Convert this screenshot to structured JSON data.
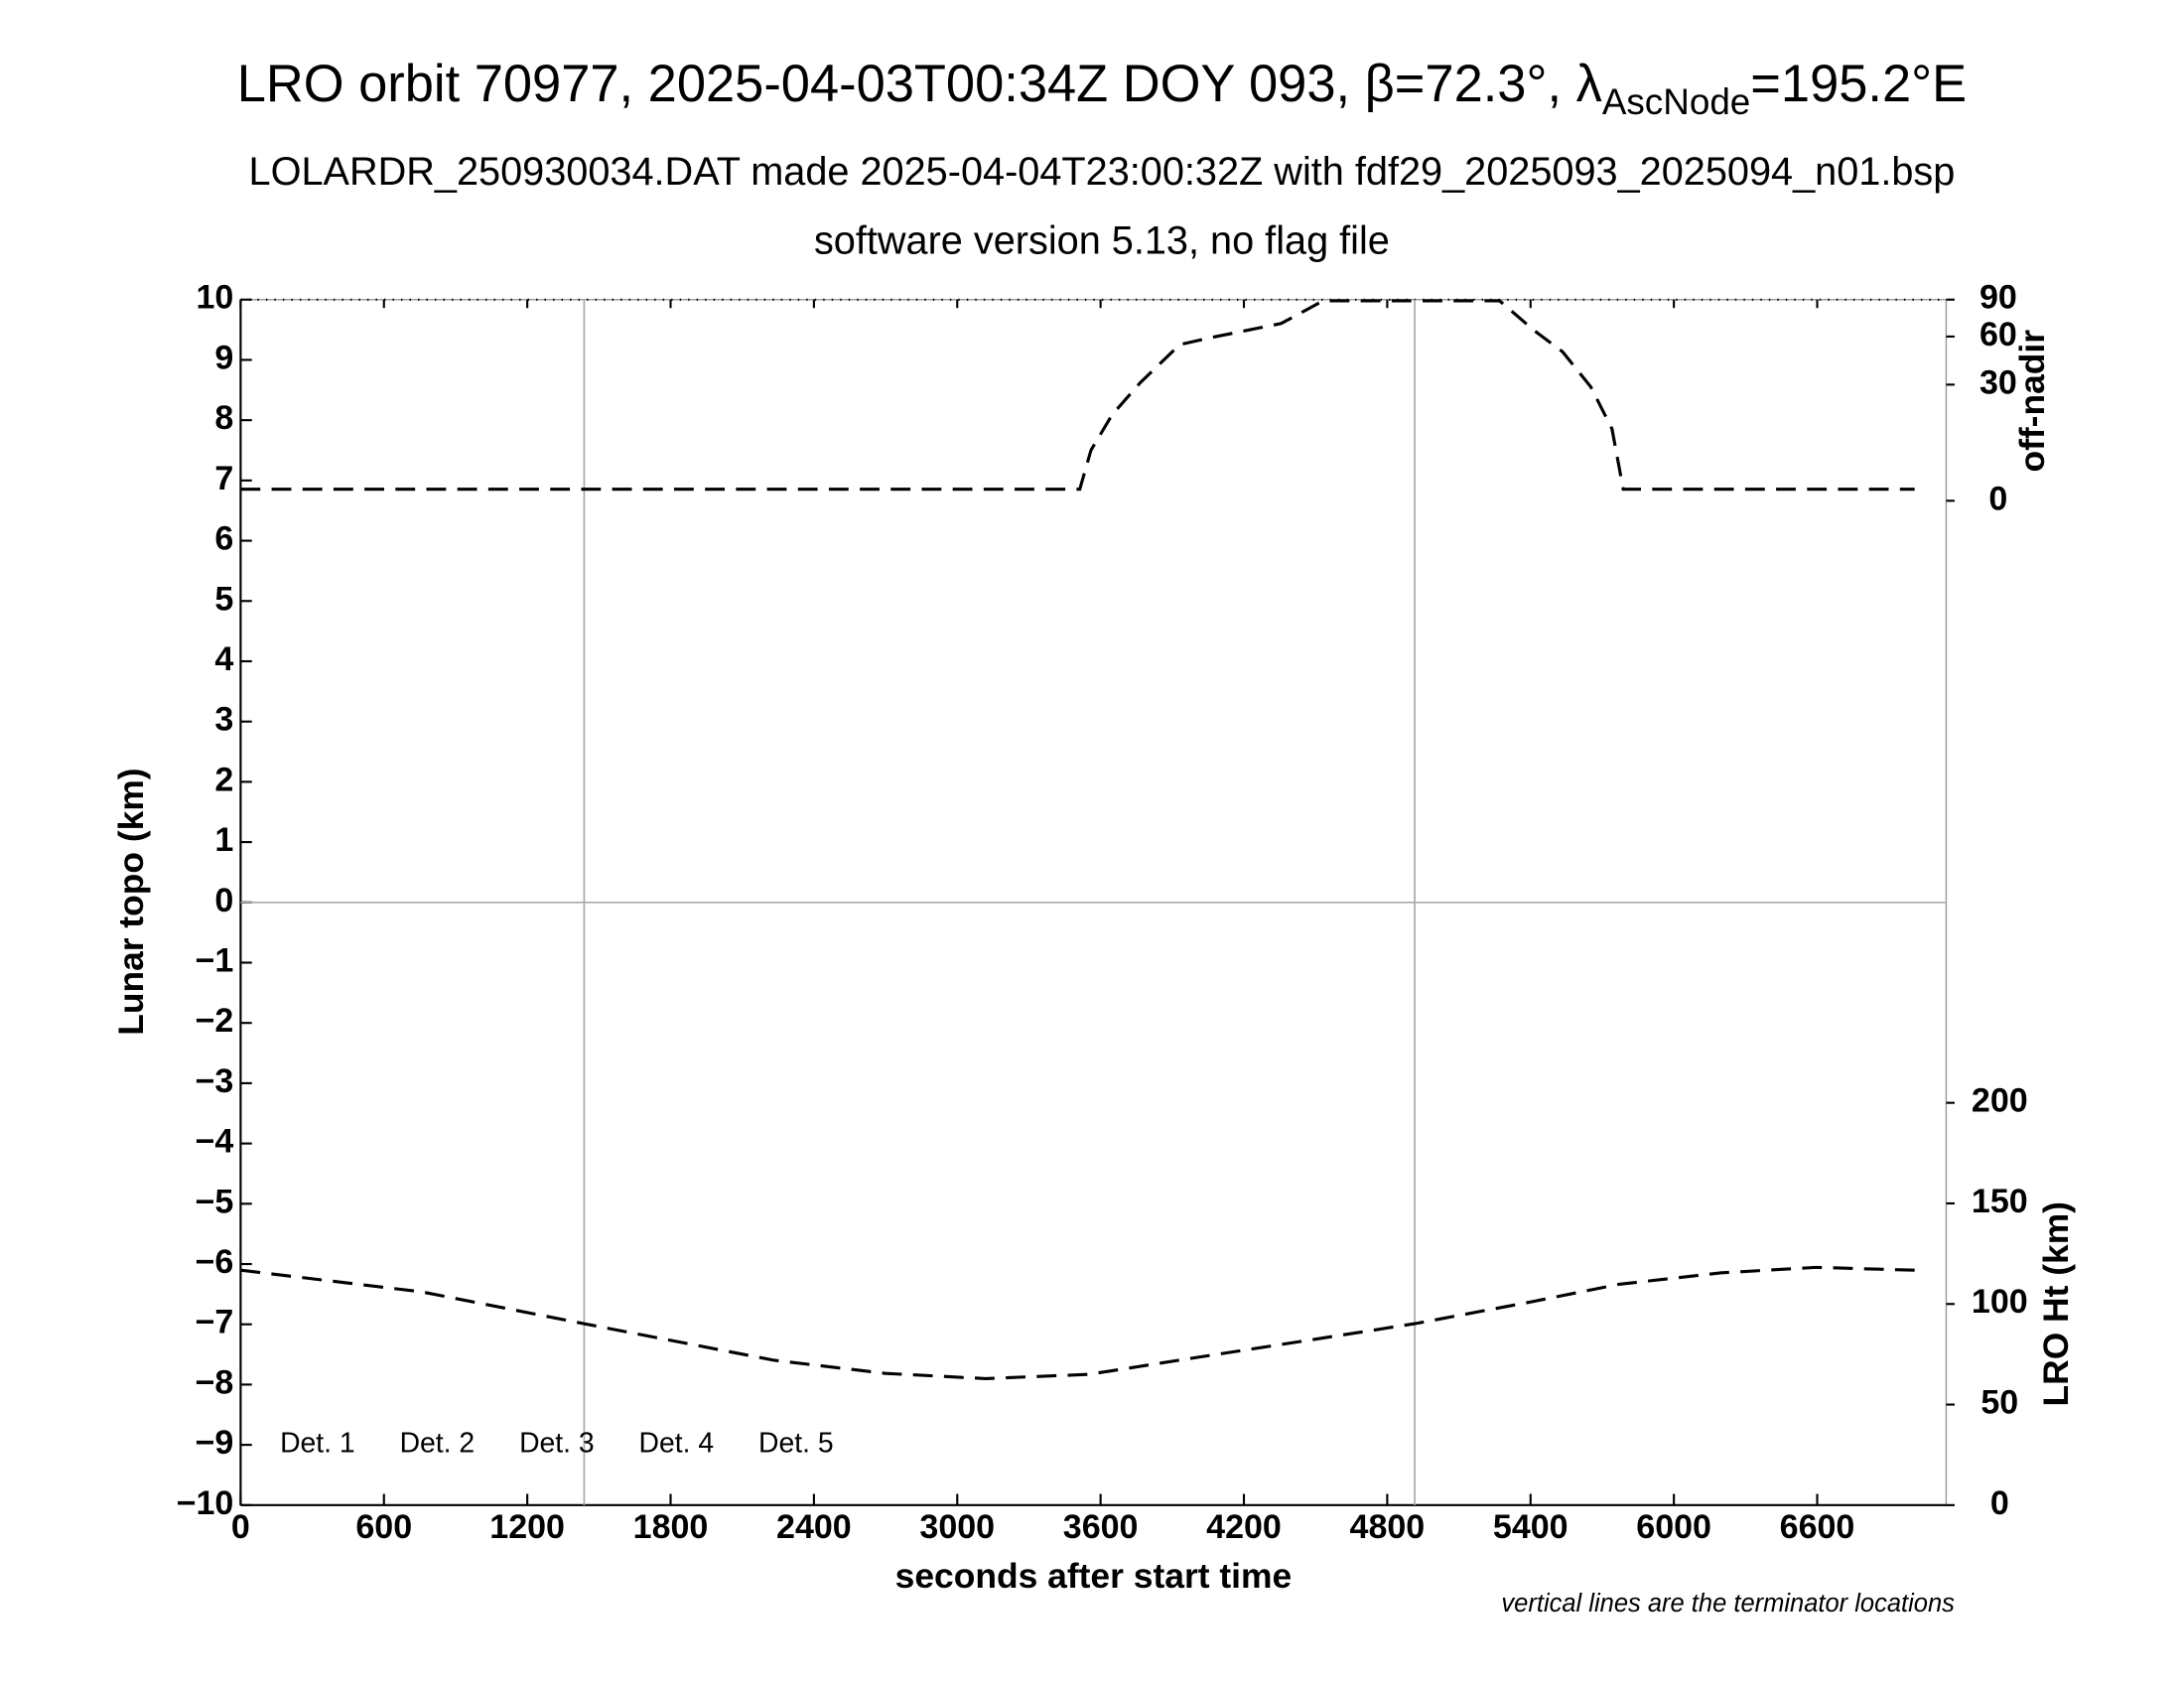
{
  "chart_data": {
    "type": "line",
    "title": [
      "LRO orbit 70977, 2025-04-03T00:34Z DOY 093, β=72.3°, λ",
      "AscNode",
      "=195.2°E"
    ],
    "subtitle": [
      "LOLARDR_250930034.DAT made 2025-04-04T23:00:32Z with fdf29_2025093_2025094_n01.bsp",
      "software version 5.13, no flag file"
    ],
    "xlabel": "seconds after start time",
    "ylabel": "Lunar topo (km)",
    "y2label": "off-nadir",
    "y3label": "LRO Ht (km)",
    "note": "vertical lines are the terminator locations",
    "xlim": [
      0,
      7140
    ],
    "xticks": [
      0,
      600,
      1200,
      1800,
      2400,
      3000,
      3600,
      4200,
      4800,
      5400,
      6000,
      6600
    ],
    "ylim": [
      -10,
      10
    ],
    "yticks": [
      {
        "value": -10,
        "label": "−10"
      },
      {
        "value": -9,
        "label": "−9"
      },
      {
        "value": -8,
        "label": "−8"
      },
      {
        "value": -7,
        "label": "−7"
      },
      {
        "value": -6,
        "label": "−6"
      },
      {
        "value": -5,
        "label": "−5"
      },
      {
        "value": -4,
        "label": "−4"
      },
      {
        "value": -3,
        "label": "−3"
      },
      {
        "value": -2,
        "label": "−2"
      },
      {
        "value": -1,
        "label": "−1"
      },
      0,
      1,
      2,
      3,
      4,
      5,
      6,
      7,
      8,
      9,
      10
    ],
    "y2lim": [
      0,
      90
    ],
    "y2scale": "sqrt",
    "y2ticks": [
      0,
      30,
      60,
      90
    ],
    "y3lim": [
      0,
      200
    ],
    "y3ticks": [
      0,
      50,
      100,
      150,
      200
    ],
    "terminators": [
      1438,
      4915
    ],
    "detectors": [
      {
        "name": "Det. 1",
        "color": "#000000"
      },
      {
        "name": "Det. 2",
        "color": "#0000ff"
      },
      {
        "name": "Det. 3",
        "color": "#00ff00"
      },
      {
        "name": "Det. 4",
        "color": "#ffa500"
      },
      {
        "name": "Det. 5",
        "color": "#ff0000"
      }
    ],
    "series": [
      {
        "name": "off-nadir",
        "axis": "y2",
        "color": "#000000",
        "x": [
          0,
          3513,
          3560,
          3648,
          3766,
          3931,
          4061,
          4356,
          4532,
          5270,
          5416,
          5534,
          5652,
          5741,
          5788,
          7008
        ],
        "values": [
          0.3,
          0.3,
          5.7,
          16.4,
          31,
          54.2,
          59.2,
          69.9,
          89,
          89,
          64.4,
          49.4,
          28.9,
          11.5,
          0.3,
          0.3
        ]
      },
      {
        "name": "LRO Ht",
        "axis": "y3",
        "color": "#000000",
        "x": [
          0,
          760,
          1438,
          2234,
          2700,
          3118,
          3550,
          4002,
          4500,
          4915,
          5400,
          5770,
          6200,
          6595,
          7008
        ],
        "values": [
          116.8,
          106,
          90.2,
          72,
          65.5,
          62.9,
          65,
          73.4,
          82.5,
          90.2,
          101,
          109.8,
          115.5,
          118.2,
          116.8
        ]
      }
    ]
  }
}
